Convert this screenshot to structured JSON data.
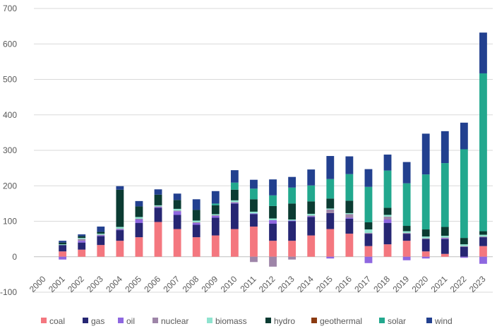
{
  "chart_data": {
    "type": "bar",
    "stacked": true,
    "title": "",
    "xlabel": "",
    "ylabel": "",
    "ylim": [
      -100,
      700
    ],
    "yticks": [
      -100,
      0,
      100,
      200,
      300,
      400,
      500,
      600,
      700
    ],
    "grid": true,
    "legend_position": "bottom",
    "categories": [
      "2000",
      "2001",
      "2002",
      "2003",
      "2004",
      "2005",
      "2006",
      "2007",
      "2008",
      "2009",
      "2010",
      "2011",
      "2012",
      "2013",
      "2014",
      "2015",
      "2016",
      "2017",
      "2018",
      "2019",
      "2020",
      "2021",
      "2022",
      "2023"
    ],
    "series": [
      {
        "name": "coal",
        "color": "#f4777f",
        "values": [
          0,
          15,
          20,
          33,
          45,
          55,
          98,
          78,
          55,
          60,
          78,
          85,
          45,
          45,
          60,
          78,
          65,
          30,
          35,
          45,
          15,
          8,
          0,
          30
        ]
      },
      {
        "name": "gas",
        "color": "#262673",
        "values": [
          0,
          18,
          20,
          25,
          30,
          40,
          40,
          40,
          35,
          50,
          72,
          35,
          48,
          55,
          52,
          45,
          42,
          35,
          60,
          20,
          35,
          42,
          28,
          25
        ]
      },
      {
        "name": "oil",
        "color": "#8e67e0",
        "values": [
          0,
          -8,
          5,
          2,
          2,
          10,
          2,
          10,
          5,
          5,
          2,
          2,
          10,
          2,
          2,
          -5,
          3,
          -18,
          10,
          -10,
          -5,
          2,
          -3,
          -20
        ]
      },
      {
        "name": "nuclear",
        "color": "#9e85a8",
        "values": [
          0,
          0,
          5,
          2,
          2,
          2,
          2,
          2,
          2,
          2,
          2,
          -15,
          -28,
          -8,
          2,
          10,
          10,
          2,
          8,
          2,
          2,
          2,
          2,
          2
        ]
      },
      {
        "name": "biomass",
        "color": "#8fe3cf",
        "values": [
          0,
          2,
          3,
          3,
          5,
          5,
          3,
          5,
          5,
          3,
          5,
          5,
          5,
          3,
          5,
          3,
          3,
          10,
          5,
          5,
          5,
          5,
          5,
          5
        ]
      },
      {
        "name": "hydro",
        "color": "#0b3b32",
        "values": [
          0,
          5,
          5,
          5,
          105,
          30,
          30,
          25,
          30,
          25,
          30,
          35,
          35,
          45,
          35,
          28,
          35,
          20,
          20,
          15,
          20,
          25,
          18,
          10
        ]
      },
      {
        "name": "geothermal",
        "color": "#8b3a10",
        "values": [
          0,
          0,
          0,
          0,
          0,
          0,
          0,
          0,
          0,
          0,
          0,
          0,
          0,
          0,
          0,
          0,
          0,
          0,
          0,
          0,
          0,
          0,
          0,
          0
        ]
      },
      {
        "name": "solar",
        "color": "#22a88e",
        "values": [
          0,
          0,
          0,
          0,
          0,
          0,
          0,
          0,
          0,
          5,
          20,
          30,
          30,
          45,
          45,
          55,
          75,
          100,
          105,
          120,
          155,
          180,
          250,
          445
        ]
      },
      {
        "name": "wind",
        "color": "#22408f",
        "values": [
          0,
          5,
          5,
          15,
          10,
          15,
          15,
          18,
          30,
          35,
          35,
          25,
          45,
          30,
          45,
          65,
          50,
          50,
          45,
          60,
          115,
          90,
          75,
          115
        ]
      }
    ]
  }
}
